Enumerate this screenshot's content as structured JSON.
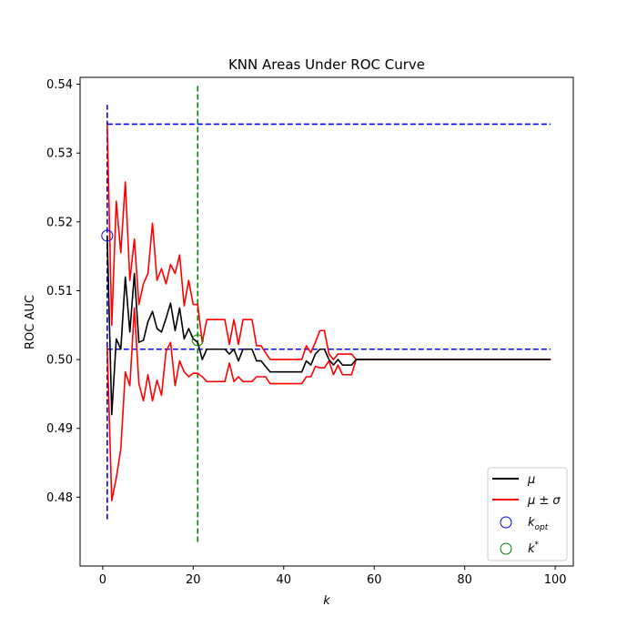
{
  "chart_data": {
    "type": "line",
    "title": "KNN Areas Under ROC Curve",
    "xlabel": "k",
    "ylabel": "ROC AUC",
    "xlim": [
      -5,
      104
    ],
    "ylim": [
      0.47,
      0.541
    ],
    "xticks": [
      0,
      20,
      40,
      60,
      80,
      100
    ],
    "xtick_labels": [
      "0",
      "20",
      "40",
      "60",
      "80",
      "100"
    ],
    "yticks": [
      0.48,
      0.49,
      0.5,
      0.51,
      0.52,
      0.53,
      0.54
    ],
    "ytick_labels": [
      "0.48",
      "0.49",
      "0.50",
      "0.51",
      "0.52",
      "0.53",
      "0.54"
    ],
    "grid": false,
    "legend_position": "lower-right",
    "x": [
      1,
      2,
      3,
      4,
      5,
      6,
      7,
      8,
      9,
      10,
      11,
      12,
      13,
      14,
      15,
      16,
      17,
      18,
      19,
      20,
      21,
      22,
      23,
      24,
      25,
      26,
      27,
      28,
      29,
      30,
      31,
      32,
      33,
      34,
      35,
      36,
      37,
      38,
      39,
      40,
      41,
      42,
      43,
      44,
      45,
      46,
      47,
      48,
      49,
      50,
      51,
      52,
      53,
      54,
      55,
      56,
      57,
      58,
      59,
      60,
      61,
      62,
      63,
      64,
      65,
      66,
      67,
      68,
      69,
      70,
      71,
      72,
      73,
      74,
      75,
      76,
      77,
      78,
      79,
      80,
      81,
      82,
      83,
      84,
      85,
      86,
      87,
      88,
      89,
      90,
      91,
      92,
      93,
      94,
      95,
      96,
      97,
      98,
      99
    ],
    "series": [
      {
        "name": "mu",
        "legend_label": "μ",
        "color": "#000000",
        "values": [
          0.518,
          0.492,
          0.503,
          0.5015,
          0.512,
          0.504,
          0.5125,
          0.5025,
          0.5028,
          0.5055,
          0.507,
          0.5045,
          0.504,
          0.506,
          0.5082,
          0.5042,
          0.5075,
          0.503,
          0.5045,
          0.503,
          0.5025,
          0.5,
          0.5015,
          0.5015,
          0.5015,
          0.5015,
          0.5015,
          0.5008,
          0.5015,
          0.4998,
          0.5015,
          0.5015,
          0.5015,
          0.4998,
          0.4998,
          0.499,
          0.4982,
          0.4982,
          0.4982,
          0.4982,
          0.4982,
          0.4982,
          0.4982,
          0.4982,
          0.4998,
          0.4992,
          0.5008,
          0.5015,
          0.5015,
          0.5,
          0.4992,
          0.5,
          0.4992,
          0.4992,
          0.4992,
          0.5,
          0.5,
          0.5,
          0.5,
          0.5,
          0.5,
          0.5,
          0.5,
          0.5,
          0.5,
          0.5,
          0.5,
          0.5,
          0.5,
          0.5,
          0.5,
          0.5,
          0.5,
          0.5,
          0.5,
          0.5,
          0.5,
          0.5,
          0.5,
          0.5,
          0.5,
          0.5,
          0.5,
          0.5,
          0.5,
          0.5,
          0.5,
          0.5,
          0.5,
          0.5,
          0.5,
          0.5,
          0.5,
          0.5,
          0.5,
          0.5,
          0.5,
          0.5,
          0.5
        ]
      },
      {
        "name": "mu_plus_sigma",
        "legend_label": "μ ± σ",
        "color": "#ff0000",
        "values": [
          0.5342,
          0.505,
          0.523,
          0.5155,
          0.5258,
          0.5115,
          0.5175,
          0.508,
          0.511,
          0.5125,
          0.5198,
          0.5115,
          0.5132,
          0.511,
          0.5138,
          0.5125,
          0.5152,
          0.5078,
          0.5115,
          0.508,
          0.508,
          0.5025,
          0.5058,
          0.5058,
          0.5058,
          0.5058,
          0.5058,
          0.5022,
          0.5058,
          0.5022,
          0.5058,
          0.5058,
          0.5058,
          0.502,
          0.502,
          0.501,
          0.5,
          0.5,
          0.5,
          0.5,
          0.5,
          0.5,
          0.5,
          0.5,
          0.502,
          0.501,
          0.5025,
          0.5042,
          0.5042,
          0.5008,
          0.5,
          0.5008,
          0.5008,
          0.5008,
          0.5008,
          0.5,
          0.5,
          0.5,
          0.5,
          0.5,
          0.5,
          0.5,
          0.5,
          0.5,
          0.5,
          0.5,
          0.5,
          0.5,
          0.5,
          0.5,
          0.5,
          0.5,
          0.5,
          0.5,
          0.5,
          0.5,
          0.5,
          0.5,
          0.5,
          0.5,
          0.5,
          0.5,
          0.5,
          0.5,
          0.5,
          0.5,
          0.5,
          0.5,
          0.5,
          0.5,
          0.5,
          0.5,
          0.5,
          0.5,
          0.5,
          0.5,
          0.5,
          0.5,
          0.5
        ]
      },
      {
        "name": "mu_minus_sigma",
        "legend_label": "",
        "color": "#ff0000",
        "values": [
          0.5018,
          0.4795,
          0.4828,
          0.487,
          0.4982,
          0.4962,
          0.5075,
          0.4965,
          0.494,
          0.4978,
          0.494,
          0.497,
          0.4948,
          0.5012,
          0.5025,
          0.4962,
          0.4998,
          0.4982,
          0.4975,
          0.498,
          0.498,
          0.4975,
          0.4968,
          0.4968,
          0.4968,
          0.4968,
          0.4968,
          0.4995,
          0.4968,
          0.4975,
          0.4968,
          0.4968,
          0.4968,
          0.4975,
          0.4975,
          0.4975,
          0.4965,
          0.4965,
          0.4965,
          0.4965,
          0.4965,
          0.4965,
          0.4965,
          0.4965,
          0.4975,
          0.4975,
          0.499,
          0.4988,
          0.4988,
          0.4998,
          0.4978,
          0.4992,
          0.4978,
          0.4978,
          0.4978,
          0.5,
          0.5,
          0.5,
          0.5,
          0.5,
          0.5,
          0.5,
          0.5,
          0.5,
          0.5,
          0.5,
          0.5,
          0.5,
          0.5,
          0.5,
          0.5,
          0.5,
          0.5,
          0.5,
          0.5,
          0.5,
          0.5,
          0.5,
          0.5,
          0.5,
          0.5,
          0.5,
          0.5,
          0.5,
          0.5,
          0.5,
          0.5,
          0.5,
          0.5,
          0.5,
          0.5,
          0.5,
          0.5,
          0.5,
          0.5,
          0.5,
          0.5,
          0.5,
          0.5
        ]
      }
    ],
    "reference_lines": [
      {
        "name": "kopt-vline",
        "orientation": "vertical",
        "x": 1,
        "y_from": 0.4768,
        "y_to": 0.537,
        "color": "#0000ff",
        "dash": "dashed"
      },
      {
        "name": "upper-hline",
        "orientation": "horizontal",
        "y": 0.5342,
        "x_from": 1,
        "x_to": 99,
        "color": "#0000ff",
        "dash": "dashed"
      },
      {
        "name": "lower-hline",
        "orientation": "horizontal",
        "y": 0.5015,
        "x_from": 1,
        "x_to": 99,
        "color": "#0000ff",
        "dash": "dashed"
      },
      {
        "name": "kstar-vline",
        "orientation": "vertical",
        "x": 21,
        "y_from": 0.4735,
        "y_to": 0.54,
        "color": "#008000",
        "dash": "dashed"
      }
    ],
    "markers": [
      {
        "name": "kopt",
        "legend_label": "k_opt",
        "x": 1,
        "y": 0.518,
        "color": "#0000ff"
      },
      {
        "name": "kstar",
        "legend_label": "k*",
        "x": 21,
        "y": 0.5028,
        "color": "#008000"
      }
    ]
  }
}
